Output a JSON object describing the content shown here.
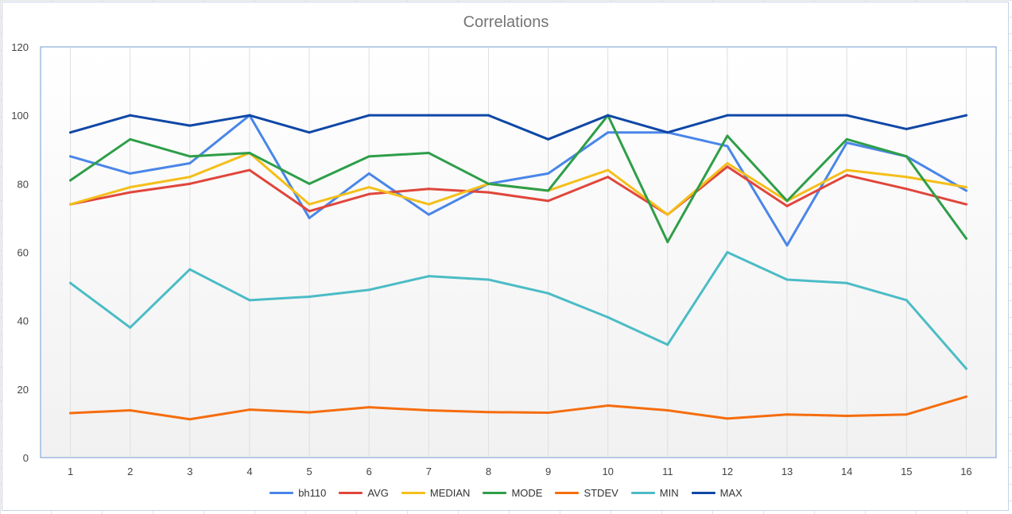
{
  "chart_data": {
    "type": "line",
    "title": "Correlations",
    "xlabel": "",
    "ylabel": "",
    "categories": [
      "1",
      "2",
      "3",
      "4",
      "5",
      "6",
      "7",
      "8",
      "9",
      "10",
      "11",
      "12",
      "13",
      "14",
      "15",
      "16"
    ],
    "ylim": [
      0,
      120
    ],
    "yticks": [
      0,
      20,
      40,
      60,
      80,
      100,
      120
    ],
    "grid": "vertical",
    "legend_position": "bottom",
    "series": [
      {
        "name": "bh110",
        "color": "#4a86e8",
        "values": [
          88,
          83,
          86,
          100,
          70,
          83,
          71,
          80,
          83,
          95,
          95,
          91,
          62,
          92,
          88,
          78
        ]
      },
      {
        "name": "AVG",
        "color": "#e0463b",
        "values": [
          74,
          77.5,
          80,
          84,
          72,
          77,
          78.5,
          77.5,
          75,
          82,
          71,
          85,
          73.5,
          82.5,
          78.5,
          74
        ]
      },
      {
        "name": "MEDIAN",
        "color": "#f4bf1a",
        "values": [
          74,
          79,
          82,
          89,
          74,
          79,
          74,
          80,
          78,
          84,
          71,
          86,
          75,
          84,
          82,
          79
        ]
      },
      {
        "name": "MODE",
        "color": "#2e9e48",
        "values": [
          81,
          93,
          88,
          89,
          80,
          88,
          89,
          80,
          78,
          100,
          63,
          94,
          75,
          93,
          88,
          64
        ]
      },
      {
        "name": "STDEV",
        "color": "#f56d0d",
        "values": [
          13,
          13.8,
          11.2,
          14,
          13.2,
          14.7,
          13.8,
          13.3,
          13.1,
          15.2,
          13.8,
          11.4,
          12.6,
          12.2,
          12.6,
          17.8
        ]
      },
      {
        "name": "MIN",
        "color": "#4bbcc6",
        "values": [
          51,
          38,
          55,
          46,
          47,
          49,
          53,
          52,
          48,
          41,
          33,
          60,
          52,
          51,
          46,
          26
        ]
      },
      {
        "name": "MAX",
        "color": "#0f47a6",
        "values": [
          95,
          100,
          97,
          100,
          95,
          100,
          100,
          100,
          93,
          100,
          95,
          100,
          100,
          100,
          96,
          100
        ]
      }
    ]
  }
}
